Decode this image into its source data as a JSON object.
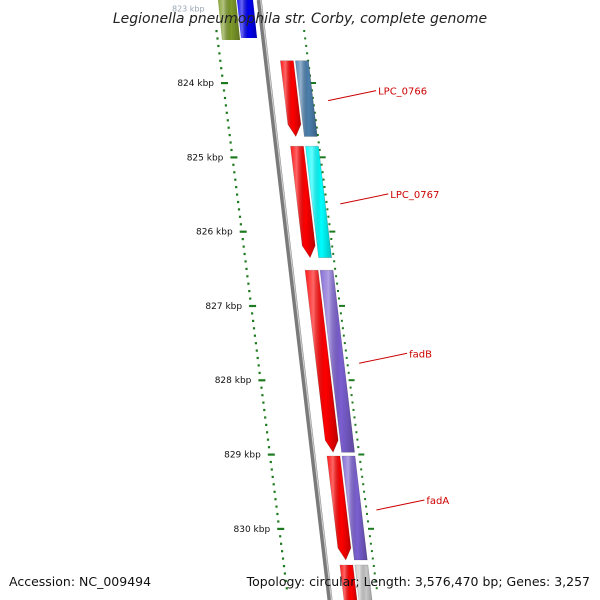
{
  "title": "Legionella pneumophila str. Corby, complete genome",
  "footer": {
    "accession": "Accession: NC_009494",
    "topology": "Topology: circular; Length: 3,576,470 bp; Genes: 3,257"
  },
  "ruler": {
    "unit": "kbp",
    "ticks": [
      {
        "kbp": 823,
        "label": "823 kbp",
        "faint": true
      },
      {
        "kbp": 824,
        "label": "824 kbp"
      },
      {
        "kbp": 825,
        "label": "825 kbp"
      },
      {
        "kbp": 826,
        "label": "826 kbp"
      },
      {
        "kbp": 827,
        "label": "827 kbp"
      },
      {
        "kbp": 828,
        "label": "828 kbp"
      },
      {
        "kbp": 829,
        "label": "829 kbp"
      },
      {
        "kbp": 830,
        "label": "830 kbp"
      }
    ]
  },
  "genes": [
    {
      "name": "LPC_0766",
      "start_kbp": 823.7,
      "end_kbp": 824.72,
      "color": "#4c7fad"
    },
    {
      "name": "LPC_0767",
      "start_kbp": 824.85,
      "end_kbp": 826.35,
      "color": "#00ffff"
    },
    {
      "name": "fadB",
      "start_kbp": 826.52,
      "end_kbp": 828.97,
      "color": "#7b5fd1"
    },
    {
      "name": "fadA",
      "start_kbp": 829.02,
      "end_kbp": 830.42,
      "color": "#7b5fd1"
    }
  ],
  "colors": {
    "cds": "#ff0000",
    "label": "#cc0000",
    "backbone": "#7a7a7a",
    "ruler": "#1e7a1e"
  }
}
